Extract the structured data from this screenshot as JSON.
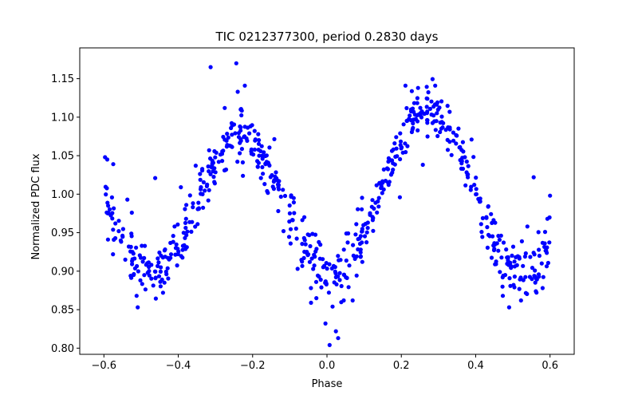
{
  "chart_data": {
    "type": "scatter",
    "title": "TIC 0212377300, period 0.2830 days",
    "xlabel": "Phase",
    "ylabel": "Normalized PDC flux",
    "xlim": [
      -0.665,
      0.665
    ],
    "ylim": [
      0.792,
      1.19
    ],
    "xticks": [
      -0.6,
      -0.4,
      -0.2,
      0.0,
      0.2,
      0.4,
      0.6
    ],
    "xtick_labels": [
      "−0.6",
      "−0.4",
      "−0.2",
      "0.0",
      "0.2",
      "0.4",
      "0.6"
    ],
    "yticks": [
      0.8,
      0.85,
      0.9,
      0.95,
      1.0,
      1.05,
      1.1,
      1.15
    ],
    "ytick_labels": [
      "0.80",
      "0.85",
      "0.90",
      "0.95",
      "1.00",
      "1.05",
      "1.10",
      "1.15"
    ],
    "grid": false,
    "series": [
      {
        "name": "flux",
        "color": "#0000ff",
        "model": {
          "period_days": 0.283,
          "mean": 0.995,
          "harmonic_amplitude": 0.097,
          "harmonic_phase_center": 0.27,
          "secondary_amplitude": 0.016,
          "scatter_sd": 0.017,
          "n_points": 640,
          "phase_range": [
            -0.6,
            0.6
          ]
        },
        "points": [
          [
            -0.597,
            1.048
          ],
          [
            -0.591,
            1.045
          ],
          [
            -0.589,
            0.941
          ],
          [
            -0.575,
            1.039
          ],
          [
            -0.56,
            0.952
          ],
          [
            -0.537,
            0.993
          ],
          [
            -0.525,
            0.976
          ],
          [
            -0.512,
            0.868
          ],
          [
            -0.509,
            0.853
          ],
          [
            -0.498,
            0.933
          ],
          [
            -0.462,
            1.021
          ],
          [
            -0.447,
            0.905
          ],
          [
            -0.441,
            0.872
          ],
          [
            -0.41,
            0.958
          ],
          [
            -0.393,
            1.009
          ],
          [
            -0.379,
            0.968
          ],
          [
            -0.353,
            1.037
          ],
          [
            -0.339,
            1.009
          ],
          [
            -0.317,
            1.057
          ],
          [
            -0.313,
            1.165
          ],
          [
            -0.291,
            1.042
          ],
          [
            -0.275,
            1.112
          ],
          [
            -0.262,
            1.063
          ],
          [
            -0.244,
            1.17
          ],
          [
            -0.24,
            1.133
          ],
          [
            -0.232,
            1.11
          ],
          [
            -0.221,
            1.141
          ],
          [
            -0.209,
            1.079
          ],
          [
            -0.185,
            1.078
          ],
          [
            -0.174,
            1.035
          ],
          [
            -0.142,
            1.018
          ],
          [
            -0.131,
            0.978
          ],
          [
            -0.117,
            0.952
          ],
          [
            -0.1,
            0.975
          ],
          [
            -0.079,
            0.903
          ],
          [
            -0.062,
            0.917
          ],
          [
            -0.043,
            0.859
          ],
          [
            -0.029,
            0.886
          ],
          [
            -0.015,
            0.879
          ],
          [
            -0.004,
            0.832
          ],
          [
            0.007,
            0.804
          ],
          [
            0.015,
            0.854
          ],
          [
            0.024,
            0.822
          ],
          [
            0.03,
            0.813
          ],
          [
            0.045,
            0.862
          ],
          [
            0.057,
            0.949
          ],
          [
            0.069,
            0.862
          ],
          [
            0.079,
            0.961
          ],
          [
            0.095,
            0.912
          ],
          [
            0.11,
            0.963
          ],
          [
            0.124,
            0.969
          ],
          [
            0.139,
            0.984
          ],
          [
            0.153,
            1.032
          ],
          [
            0.168,
            1.016
          ],
          [
            0.182,
            1.066
          ],
          [
            0.197,
            1.079
          ],
          [
            0.211,
            1.141
          ],
          [
            0.233,
            1.107
          ],
          [
            0.245,
            1.138
          ],
          [
            0.27,
            1.124
          ],
          [
            0.291,
            1.141
          ],
          [
            0.305,
            1.093
          ],
          [
            0.33,
            1.107
          ],
          [
            0.349,
            1.076
          ],
          [
            0.362,
            1.04
          ],
          [
            0.371,
            1.048
          ],
          [
            0.389,
            1.071
          ],
          [
            0.402,
            1.0
          ],
          [
            0.416,
            0.951
          ],
          [
            0.429,
            0.969
          ],
          [
            0.45,
            0.929
          ],
          [
            0.465,
            0.899
          ],
          [
            0.473,
            0.868
          ],
          [
            0.49,
            0.853
          ],
          [
            0.505,
            0.893
          ],
          [
            0.522,
            0.862
          ],
          [
            0.539,
            0.958
          ],
          [
            0.556,
            1.022
          ],
          [
            0.57,
            0.893
          ],
          [
            0.58,
            0.878
          ],
          [
            0.593,
            0.968
          ],
          [
            0.6,
            0.998
          ]
        ]
      }
    ]
  }
}
